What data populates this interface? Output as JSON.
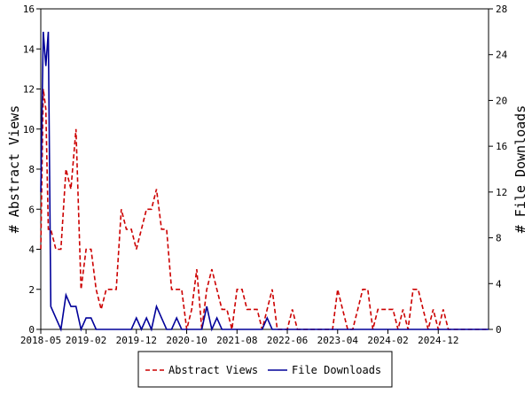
{
  "chart_data": {
    "type": "line",
    "x_tick_labels": [
      "2018-05",
      "2019-02",
      "2019-12",
      "2020-10",
      "2021-08",
      "2022-06",
      "2023-04",
      "2024-02",
      "2024-12"
    ],
    "x_tick_months": [
      0,
      9,
      19,
      29,
      39,
      49,
      59,
      69,
      79
    ],
    "x_range": [
      0,
      89
    ],
    "left_axis": {
      "label": "# Abstract Views",
      "ylim": [
        0,
        16
      ],
      "ticks": [
        0,
        2,
        4,
        6,
        8,
        10,
        12,
        14,
        16
      ]
    },
    "right_axis": {
      "label": "# File Downloads",
      "ylim": [
        0,
        28
      ],
      "ticks": [
        0,
        4,
        8,
        12,
        16,
        20,
        24,
        28
      ]
    },
    "series": [
      {
        "name": "Abstract Views",
        "axis": "left",
        "color": "#cc0000",
        "dash": "dashed",
        "points": [
          [
            0,
            4
          ],
          [
            0.5,
            12
          ],
          [
            1,
            11
          ],
          [
            1.5,
            5
          ],
          [
            2,
            5
          ],
          [
            3,
            4
          ],
          [
            4,
            4
          ],
          [
            5,
            8
          ],
          [
            6,
            7
          ],
          [
            7,
            10
          ],
          [
            8,
            2
          ],
          [
            9,
            4
          ],
          [
            10,
            4
          ],
          [
            11,
            2
          ],
          [
            12,
            1
          ],
          [
            13,
            2
          ],
          [
            14,
            2
          ],
          [
            15,
            2
          ],
          [
            16,
            6
          ],
          [
            17,
            5
          ],
          [
            18,
            5
          ],
          [
            19,
            4
          ],
          [
            20,
            5
          ],
          [
            21,
            6
          ],
          [
            22,
            6
          ],
          [
            23,
            7
          ],
          [
            24,
            5
          ],
          [
            25,
            5
          ],
          [
            26,
            2
          ],
          [
            27,
            2
          ],
          [
            28,
            2
          ],
          [
            29,
            0
          ],
          [
            30,
            1
          ],
          [
            31,
            3
          ],
          [
            32,
            0
          ],
          [
            33,
            2
          ],
          [
            34,
            3
          ],
          [
            35,
            2
          ],
          [
            36,
            1
          ],
          [
            37,
            1
          ],
          [
            38,
            0
          ],
          [
            39,
            2
          ],
          [
            40,
            2
          ],
          [
            41,
            1
          ],
          [
            42,
            1
          ],
          [
            43,
            1
          ],
          [
            44,
            0
          ],
          [
            45,
            1
          ],
          [
            46,
            2
          ],
          [
            47,
            0
          ],
          [
            48,
            0
          ],
          [
            49,
            0
          ],
          [
            50,
            1
          ],
          [
            51,
            0
          ],
          [
            52,
            0
          ],
          [
            53,
            0
          ],
          [
            54,
            0
          ],
          [
            55,
            0
          ],
          [
            56,
            0
          ],
          [
            57,
            0
          ],
          [
            58,
            0
          ],
          [
            59,
            2
          ],
          [
            60,
            1
          ],
          [
            61,
            0
          ],
          [
            62,
            0
          ],
          [
            63,
            1
          ],
          [
            64,
            2
          ],
          [
            65,
            2
          ],
          [
            66,
            0
          ],
          [
            67,
            1
          ],
          [
            68,
            1
          ],
          [
            69,
            1
          ],
          [
            70,
            1
          ],
          [
            71,
            0
          ],
          [
            72,
            1
          ],
          [
            73,
            0
          ],
          [
            74,
            2
          ],
          [
            75,
            2
          ],
          [
            76,
            1
          ],
          [
            77,
            0
          ],
          [
            78,
            1
          ],
          [
            79,
            0
          ],
          [
            80,
            1
          ],
          [
            81,
            0
          ],
          [
            82,
            0
          ],
          [
            83,
            0
          ],
          [
            84,
            0
          ],
          [
            85,
            0
          ],
          [
            86,
            0
          ],
          [
            87,
            0
          ],
          [
            88,
            0
          ],
          [
            89,
            0
          ]
        ]
      },
      {
        "name": "File Downloads",
        "axis": "right",
        "color": "#000099",
        "dash": "solid",
        "points": [
          [
            0,
            12
          ],
          [
            0.5,
            26
          ],
          [
            1,
            23
          ],
          [
            1.5,
            26
          ],
          [
            2,
            2
          ],
          [
            3,
            1
          ],
          [
            4,
            0
          ],
          [
            5,
            3
          ],
          [
            6,
            2
          ],
          [
            7,
            2
          ],
          [
            8,
            0
          ],
          [
            9,
            1
          ],
          [
            10,
            1
          ],
          [
            11,
            0
          ],
          [
            12,
            0
          ],
          [
            13,
            0
          ],
          [
            14,
            0
          ],
          [
            15,
            0
          ],
          [
            16,
            0
          ],
          [
            17,
            0
          ],
          [
            18,
            0
          ],
          [
            19,
            1
          ],
          [
            20,
            0
          ],
          [
            21,
            1
          ],
          [
            22,
            0
          ],
          [
            23,
            2
          ],
          [
            24,
            1
          ],
          [
            25,
            0
          ],
          [
            26,
            0
          ],
          [
            27,
            1
          ],
          [
            28,
            0
          ],
          [
            29,
            0
          ],
          [
            30,
            0
          ],
          [
            31,
            0
          ],
          [
            32,
            0
          ],
          [
            33,
            2
          ],
          [
            34,
            0
          ],
          [
            35,
            1
          ],
          [
            36,
            0
          ],
          [
            37,
            0
          ],
          [
            38,
            0
          ],
          [
            39,
            0
          ],
          [
            40,
            0
          ],
          [
            41,
            0
          ],
          [
            42,
            0
          ],
          [
            43,
            0
          ],
          [
            44,
            0
          ],
          [
            45,
            1
          ],
          [
            46,
            0
          ],
          [
            47,
            0
          ],
          [
            48,
            0
          ],
          [
            49,
            0
          ],
          [
            50,
            0
          ],
          [
            51,
            0
          ],
          [
            52,
            0
          ],
          [
            53,
            0
          ],
          [
            54,
            0
          ],
          [
            55,
            0
          ],
          [
            56,
            0
          ],
          [
            57,
            0
          ],
          [
            58,
            0
          ],
          [
            59,
            0
          ],
          [
            60,
            0
          ],
          [
            61,
            0
          ],
          [
            62,
            0
          ],
          [
            63,
            0
          ],
          [
            64,
            0
          ],
          [
            65,
            0
          ],
          [
            66,
            0
          ],
          [
            67,
            0
          ],
          [
            68,
            0
          ],
          [
            69,
            0
          ],
          [
            70,
            0
          ],
          [
            71,
            0
          ],
          [
            72,
            0
          ],
          [
            73,
            0
          ],
          [
            74,
            0
          ],
          [
            75,
            0
          ],
          [
            76,
            0
          ],
          [
            77,
            0
          ],
          [
            78,
            0
          ],
          [
            79,
            0
          ],
          [
            80,
            0
          ],
          [
            81,
            0
          ],
          [
            82,
            0
          ],
          [
            83,
            0
          ],
          [
            84,
            0
          ],
          [
            85,
            0
          ],
          [
            86,
            0
          ],
          [
            87,
            0
          ],
          [
            88,
            0
          ],
          [
            89,
            0
          ]
        ]
      }
    ],
    "legend": {
      "placement": "bottom-center",
      "items": [
        "Abstract Views",
        "File Downloads"
      ]
    },
    "grid": false
  }
}
